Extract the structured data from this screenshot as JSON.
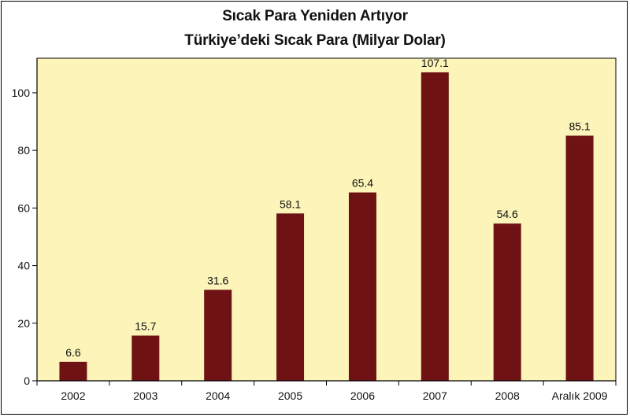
{
  "colors": {
    "plot_background": "#FCF4B8",
    "bar": "#6E1214",
    "axis": "#000000",
    "frame": "#000000"
  },
  "chart_data": {
    "type": "bar",
    "title": "Sıcak Para Yeniden Artıyor",
    "subtitle": "Türkiye’deki Sıcak Para (Milyar Dolar)",
    "categories": [
      "2002",
      "2003",
      "2004",
      "2005",
      "2006",
      "2007",
      "2008",
      "Aralık 2009"
    ],
    "values": [
      6.6,
      15.7,
      31.6,
      58.1,
      65.4,
      107.1,
      54.6,
      85.1
    ],
    "value_labels": [
      "6.6",
      "15.7",
      "31.6",
      "58.1",
      "65.4",
      "107.1",
      "54.6",
      "85.1"
    ],
    "y_ticks": [
      0,
      20,
      40,
      60,
      80,
      100
    ],
    "y_tick_labels": [
      "0",
      "20",
      "40",
      "60",
      "80",
      "100"
    ],
    "ylim": [
      0,
      112
    ],
    "xlabel": "",
    "ylabel": "",
    "grid": false,
    "legend": "none"
  }
}
